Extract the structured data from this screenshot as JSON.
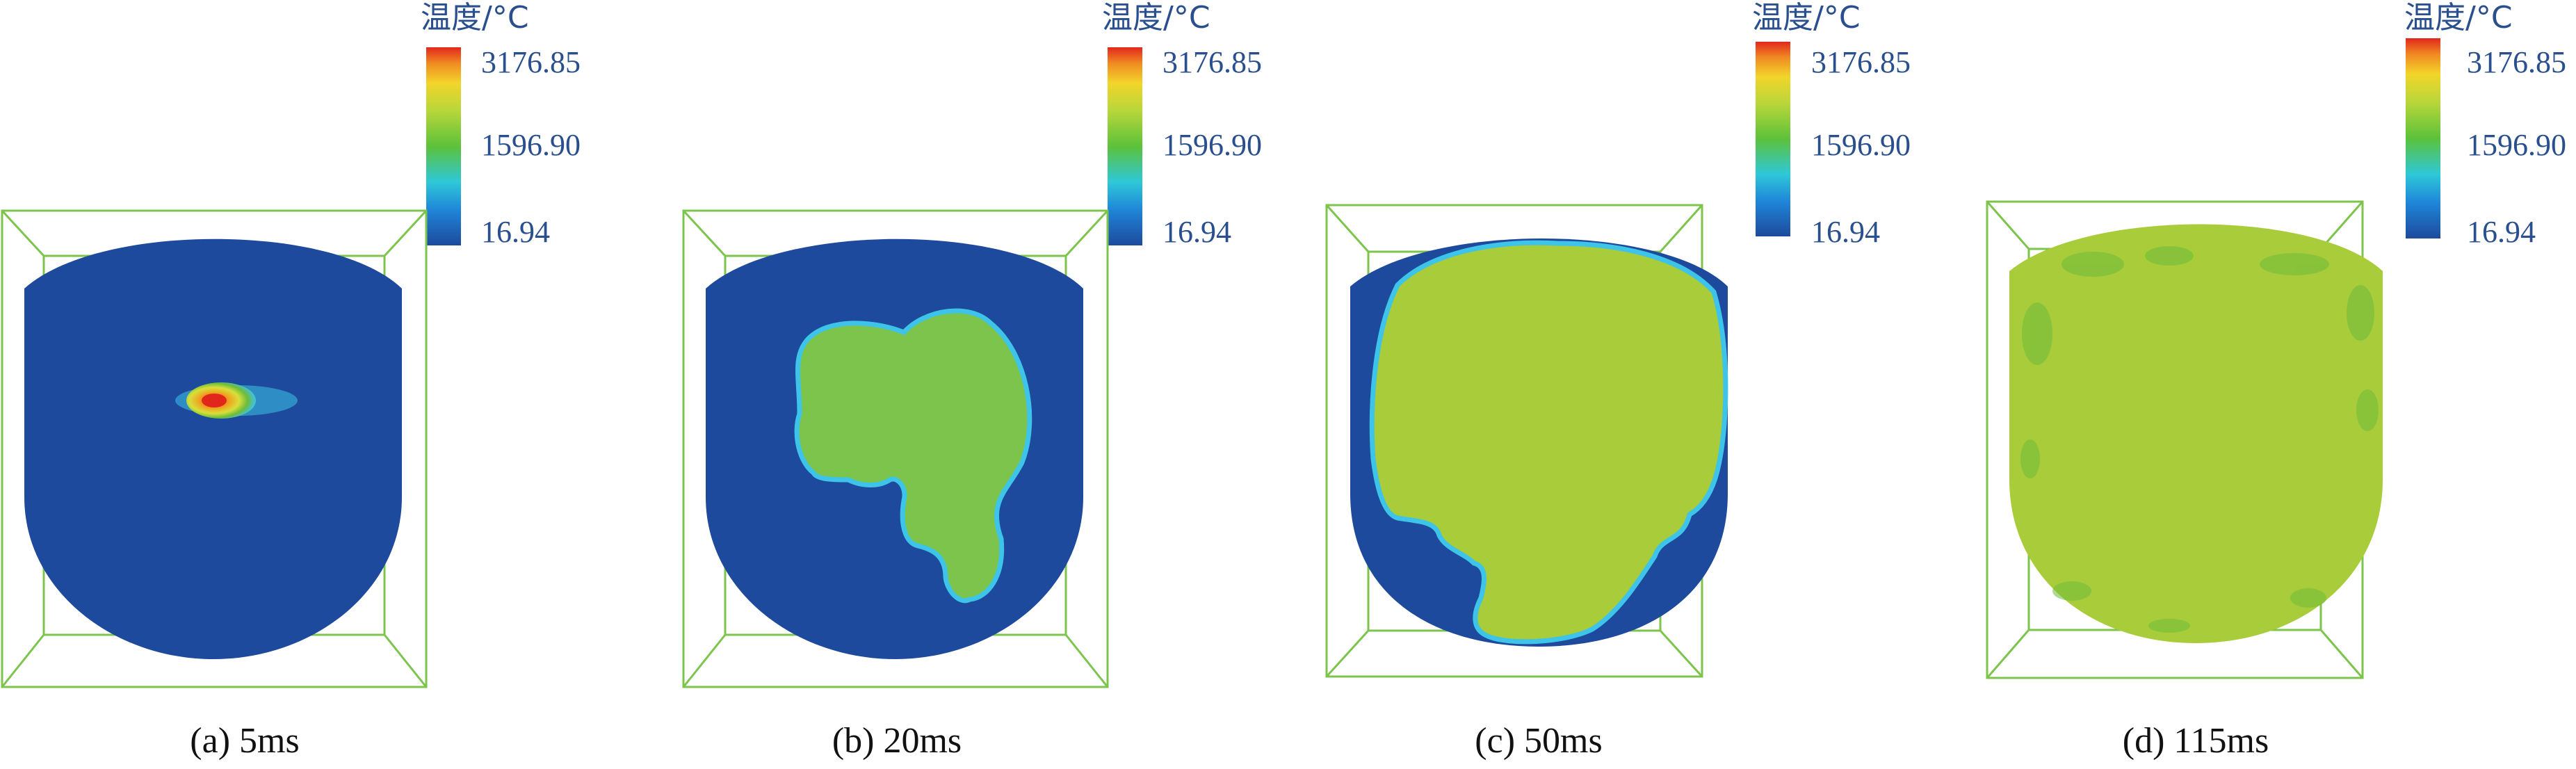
{
  "colorbar": {
    "title": "温度/°C",
    "ticks": [
      "3176.85",
      "1596.90",
      "16.94"
    ]
  },
  "colors": {
    "cold": "#1d4a9c",
    "mid": "#6dbb3a",
    "melt": "#a8cc3a",
    "hot": "#e1261c",
    "edge": "#3ec4e8",
    "frame": "#7cc44c"
  },
  "panels": [
    {
      "caption": "(a) 5ms"
    },
    {
      "caption": "(b) 20ms"
    },
    {
      "caption": "(c) 50ms"
    },
    {
      "caption": "(d) 115ms"
    }
  ]
}
